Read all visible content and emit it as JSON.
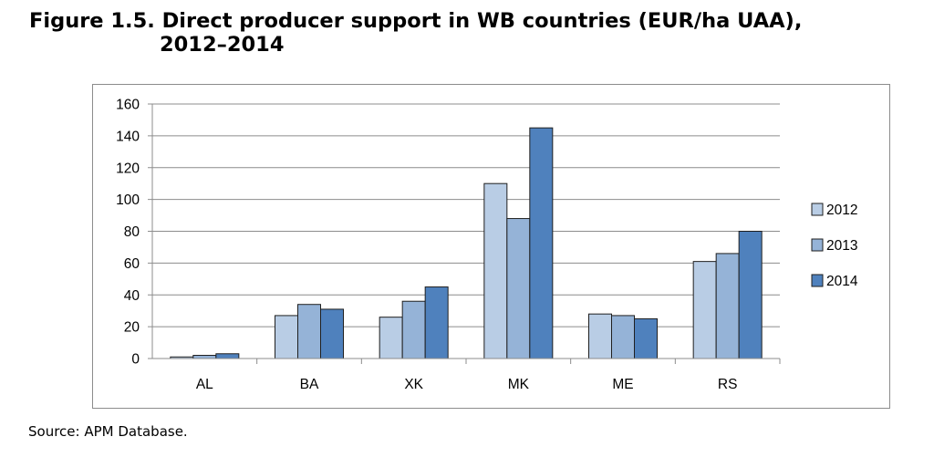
{
  "figure": {
    "title_line1": "Figure 1.5. Direct producer support in WB countries (EUR/ha UAA),",
    "title_line2": "2012–2014",
    "source": "Source: APM Database."
  },
  "chart_data": {
    "type": "bar",
    "categories": [
      "AL",
      "BA",
      "XK",
      "MK",
      "ME",
      "RS"
    ],
    "series": [
      {
        "name": "2012",
        "values": [
          1,
          27,
          26,
          110,
          28,
          61
        ],
        "color": "#b9cde5"
      },
      {
        "name": "2013",
        "values": [
          2,
          34,
          36,
          88,
          27,
          66
        ],
        "color": "#95b3d7"
      },
      {
        "name": "2014",
        "values": [
          3,
          31,
          45,
          145,
          25,
          80
        ],
        "color": "#4f81bd"
      }
    ],
    "ylim": [
      0,
      160
    ],
    "yticks": [
      0,
      20,
      40,
      60,
      80,
      100,
      120,
      140,
      160
    ],
    "grid": true,
    "legend_position": "right",
    "xlabel": "",
    "ylabel": ""
  }
}
